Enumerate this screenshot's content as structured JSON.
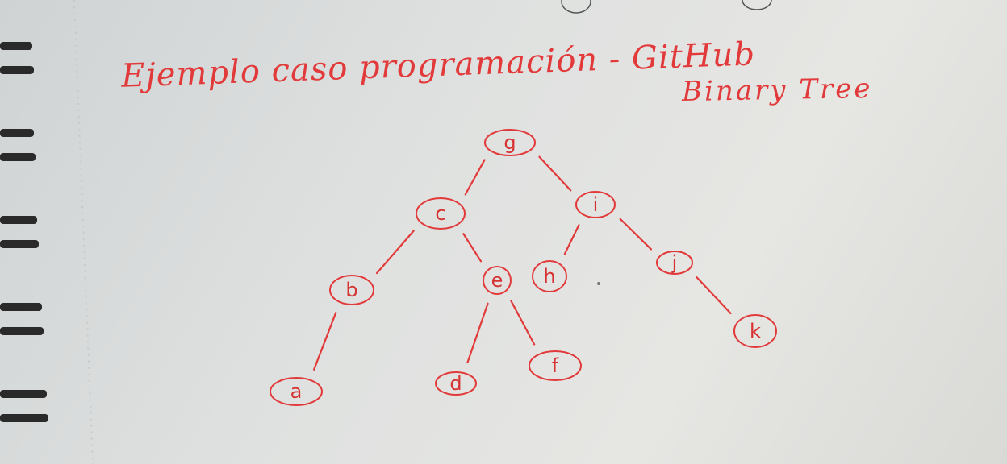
{
  "note": {
    "title": "Ejemplo caso programación - GitHub",
    "subtitle": "Binary Tree"
  },
  "tree": {
    "nodes": [
      {
        "id": "g",
        "label": "g"
      },
      {
        "id": "c",
        "label": "c"
      },
      {
        "id": "i",
        "label": "i"
      },
      {
        "id": "b",
        "label": "b"
      },
      {
        "id": "e",
        "label": "e"
      },
      {
        "id": "h",
        "label": "h"
      },
      {
        "id": "j",
        "label": "j"
      },
      {
        "id": "a",
        "label": "a"
      },
      {
        "id": "d",
        "label": "d"
      },
      {
        "id": "f",
        "label": "f"
      },
      {
        "id": "k",
        "label": "k"
      }
    ],
    "edges": [
      [
        "g",
        "c"
      ],
      [
        "g",
        "i"
      ],
      [
        "c",
        "b"
      ],
      [
        "c",
        "e"
      ],
      [
        "i",
        "h"
      ],
      [
        "i",
        "j"
      ],
      [
        "b",
        "a"
      ],
      [
        "e",
        "d"
      ],
      [
        "e",
        "f"
      ],
      [
        "j",
        "k"
      ]
    ]
  },
  "colors": {
    "ink": "#e23a3a",
    "paper": "#e2e3e0",
    "coil": "#2a2a2a"
  }
}
